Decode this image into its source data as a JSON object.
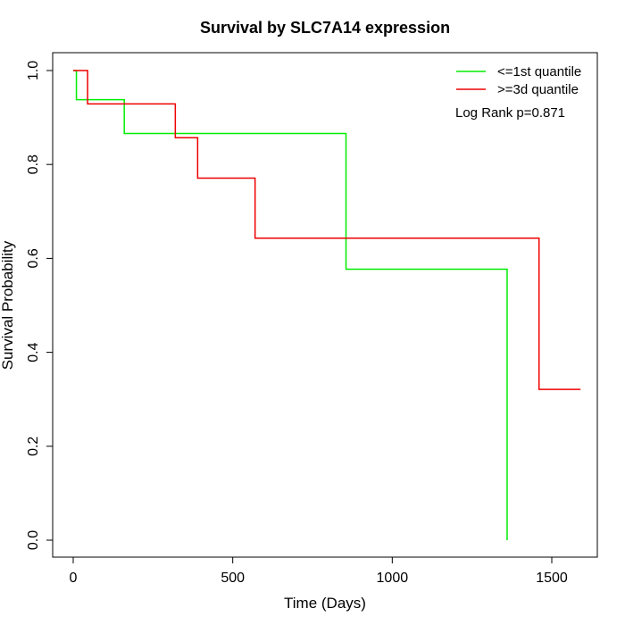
{
  "chart_data": {
    "type": "line",
    "subtype": "kaplan-meier-step",
    "title": "Survival by SLC7A14 expression",
    "xlabel": "Time (Days)",
    "ylabel": "Survival Probability",
    "xlim": [
      0,
      1650
    ],
    "ylim": [
      0,
      1
    ],
    "x_ticks": [
      0,
      500,
      1000,
      1500
    ],
    "y_ticks": [
      0.0,
      0.2,
      0.4,
      0.6,
      0.8,
      1.0
    ],
    "x_tick_labels": [
      "0",
      "500",
      "1000",
      "1500"
    ],
    "y_tick_labels": [
      "0.0",
      "0.2",
      "0.4",
      "0.6",
      "0.8",
      "1.0"
    ],
    "grid": false,
    "legend_position": "top-right",
    "annotation": "Log Rank p=0.871",
    "series": [
      {
        "name": "<=1st quantile",
        "color": "#00ee00",
        "steps": [
          {
            "x": 0,
            "y": 1.0
          },
          {
            "x": 10,
            "y": 0.938
          },
          {
            "x": 160,
            "y": 0.866
          },
          {
            "x": 855,
            "y": 0.577
          },
          {
            "x": 1360,
            "y": 0.0
          }
        ],
        "end_x": 1360
      },
      {
        "name": ">=3d quantile",
        "color": "#ee0000",
        "steps": [
          {
            "x": 0,
            "y": 1.0
          },
          {
            "x": 45,
            "y": 0.929
          },
          {
            "x": 320,
            "y": 0.857
          },
          {
            "x": 390,
            "y": 0.771
          },
          {
            "x": 570,
            "y": 0.643
          },
          {
            "x": 1460,
            "y": 0.321
          }
        ],
        "end_x": 1590
      }
    ]
  }
}
